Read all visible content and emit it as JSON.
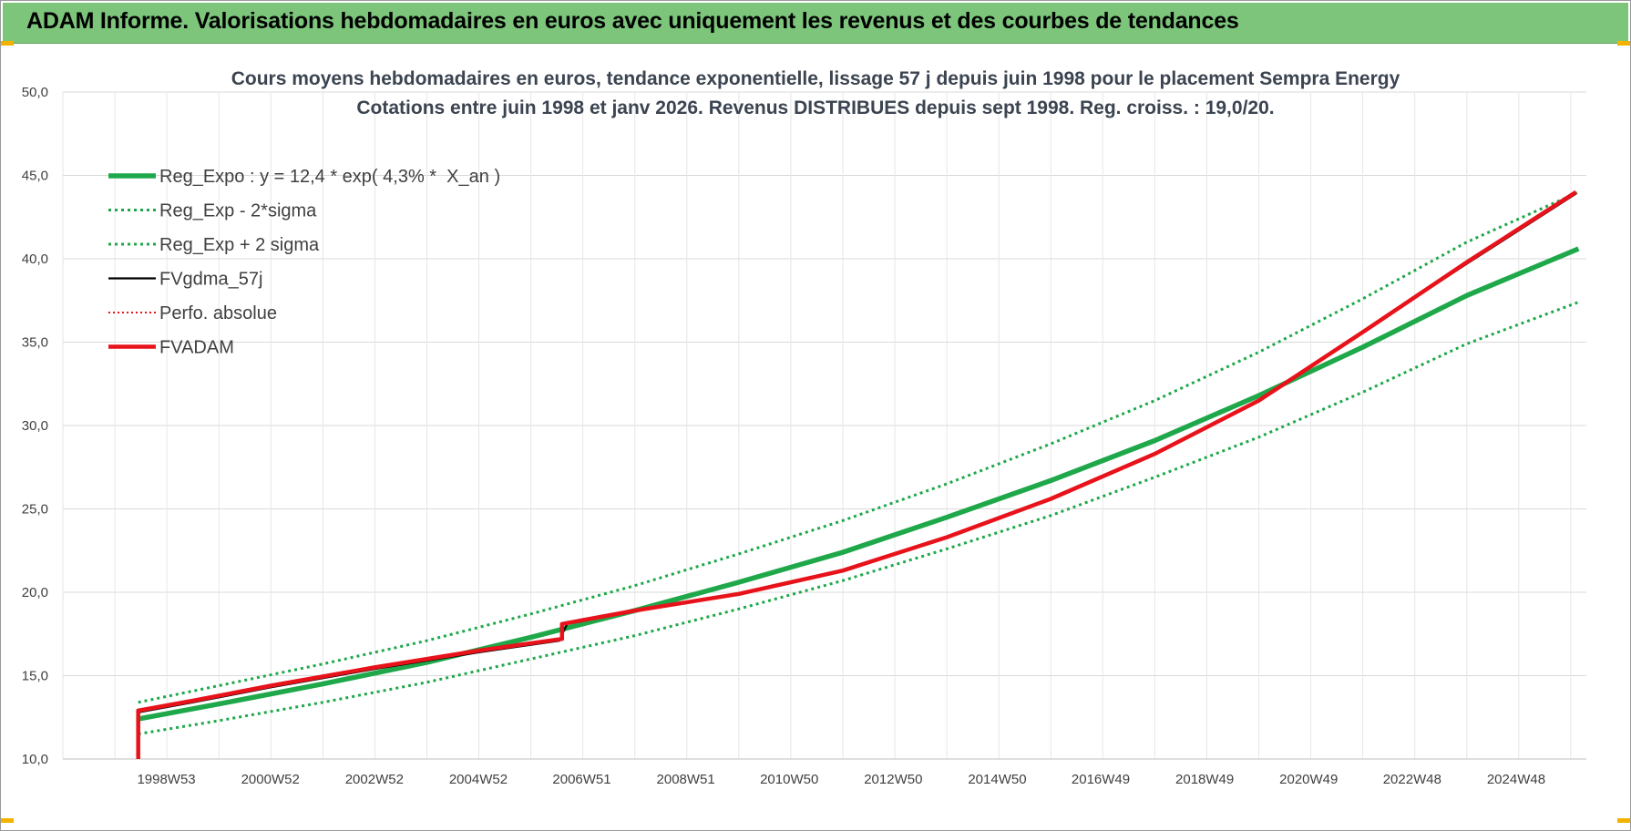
{
  "banner": {
    "title": "ADAM Informe. Valorisations hebdomadaires en euros avec uniquement les revenus et des courbes de tendances"
  },
  "colors": {
    "banner_bg": "#7cc57b",
    "trend_green": "#1ea84a",
    "series_red": "#e8121a",
    "series_black": "#000000",
    "grid": "#d9d9d9"
  },
  "chart_data": {
    "type": "line",
    "title": "Cours moyens hebdomadaires en euros, tendance exponentielle, lissage 57 j depuis juin 1998 pour le placement Sempra Energy",
    "subtitle": "Cotations entre juin 1998 et janv 2026. Revenus DISTRIBUES depuis sept 1998. Reg. croiss. : 19,0/20.",
    "xlabel": "",
    "ylabel": "",
    "ylim": [
      10,
      50
    ],
    "xlim": [
      1997.0,
      2026.3
    ],
    "yticks": [
      "10,0",
      "15,0",
      "20,0",
      "25,0",
      "30,0",
      "35,0",
      "40,0",
      "45,0",
      "50,0"
    ],
    "xticks": [
      {
        "label": "1998W53",
        "x": 1998.99
      },
      {
        "label": "2000W52",
        "x": 2000.99
      },
      {
        "label": "2002W52",
        "x": 2002.99
      },
      {
        "label": "2004W52",
        "x": 2004.99
      },
      {
        "label": "2006W51",
        "x": 2006.98
      },
      {
        "label": "2008W51",
        "x": 2008.98
      },
      {
        "label": "2010W50",
        "x": 2010.97
      },
      {
        "label": "2012W50",
        "x": 2012.97
      },
      {
        "label": "2014W50",
        "x": 2014.97
      },
      {
        "label": "2016W49",
        "x": 2016.96
      },
      {
        "label": "2018W49",
        "x": 2018.96
      },
      {
        "label": "2020W49",
        "x": 2020.96
      },
      {
        "label": "2022W48",
        "x": 2022.95
      },
      {
        "label": "2024W48",
        "x": 2024.95
      }
    ],
    "grid": true,
    "legend_position": "top-left",
    "series": [
      {
        "name": "Reg_Expo : y = 12,4 * exp( 4,3% *  X_an )",
        "color": "#1ea84a",
        "style": "solid-thick",
        "x": [
          1998.45,
          2000.0,
          2002.0,
          2004.0,
          2006.0,
          2008.0,
          2010.0,
          2012.0,
          2014.0,
          2016.0,
          2018.0,
          2020.0,
          2022.0,
          2024.0,
          2026.15
        ],
        "values": [
          12.4,
          13.3,
          14.5,
          15.8,
          17.3,
          18.9,
          20.6,
          22.4,
          24.5,
          26.7,
          29.1,
          31.8,
          34.7,
          37.8,
          40.6
        ]
      },
      {
        "name": "Reg_Exp - 2*sigma",
        "color": "#1ea84a",
        "style": "dotted",
        "x": [
          1998.45,
          2000.0,
          2002.0,
          2004.0,
          2006.0,
          2008.0,
          2010.0,
          2012.0,
          2014.0,
          2016.0,
          2018.0,
          2020.0,
          2022.0,
          2024.0,
          2026.15
        ],
        "values": [
          11.5,
          12.3,
          13.4,
          14.6,
          16.0,
          17.4,
          19.0,
          20.7,
          22.6,
          24.6,
          26.9,
          29.3,
          32.0,
          34.9,
          37.4
        ]
      },
      {
        "name": "Reg_Exp + 2 sigma",
        "color": "#1ea84a",
        "style": "dotted",
        "x": [
          1998.45,
          2000.0,
          2002.0,
          2004.0,
          2006.0,
          2008.0,
          2010.0,
          2012.0,
          2014.0,
          2016.0,
          2018.0,
          2020.0,
          2022.0,
          2024.0,
          2026.15
        ],
        "values": [
          13.4,
          14.4,
          15.7,
          17.1,
          18.7,
          20.4,
          22.3,
          24.3,
          26.5,
          28.9,
          31.5,
          34.4,
          37.6,
          41.0,
          44.0
        ]
      },
      {
        "name": "FVgdma_57j",
        "color": "#000000",
        "style": "solid",
        "x": [
          1998.45,
          1998.45,
          1999.5,
          2001.0,
          2003.0,
          2005.0,
          2006.55,
          2006.62,
          2006.7,
          2008.0,
          2010.0,
          2012.0,
          2014.0,
          2016.0,
          2018.0,
          2020.0,
          2022.0,
          2024.0,
          2026.1
        ],
        "values": [
          10.0,
          12.8,
          13.4,
          14.3,
          15.4,
          16.4,
          17.1,
          17.6,
          18.1,
          18.9,
          19.9,
          21.3,
          23.3,
          25.6,
          28.3,
          31.5,
          35.6,
          39.7,
          43.9
        ]
      },
      {
        "name": "Perfo. absolue",
        "color": "#e8121a",
        "style": "dotted",
        "x": [
          1998.45,
          1998.45,
          1999.5,
          2001.0,
          2003.0,
          2005.0,
          2006.6,
          2006.6,
          2008.0,
          2010.0,
          2012.0,
          2014.0,
          2016.0,
          2018.0,
          2020.0,
          2022.0,
          2024.0,
          2026.1
        ],
        "values": [
          10.0,
          12.9,
          13.5,
          14.4,
          15.5,
          16.5,
          17.2,
          18.1,
          18.9,
          19.9,
          21.3,
          23.3,
          25.6,
          28.3,
          31.5,
          35.6,
          39.8,
          44.0
        ]
      },
      {
        "name": "FVADAM",
        "color": "#e8121a",
        "style": "solid-thick",
        "x": [
          1998.45,
          1998.45,
          1999.5,
          2001.0,
          2003.0,
          2005.0,
          2006.6,
          2006.6,
          2008.0,
          2010.0,
          2012.0,
          2014.0,
          2016.0,
          2018.0,
          2020.0,
          2022.0,
          2024.0,
          2026.1
        ],
        "values": [
          10.0,
          12.9,
          13.5,
          14.4,
          15.5,
          16.5,
          17.2,
          18.1,
          18.9,
          19.9,
          21.3,
          23.3,
          25.6,
          28.3,
          31.5,
          35.6,
          39.8,
          44.0
        ]
      }
    ]
  }
}
